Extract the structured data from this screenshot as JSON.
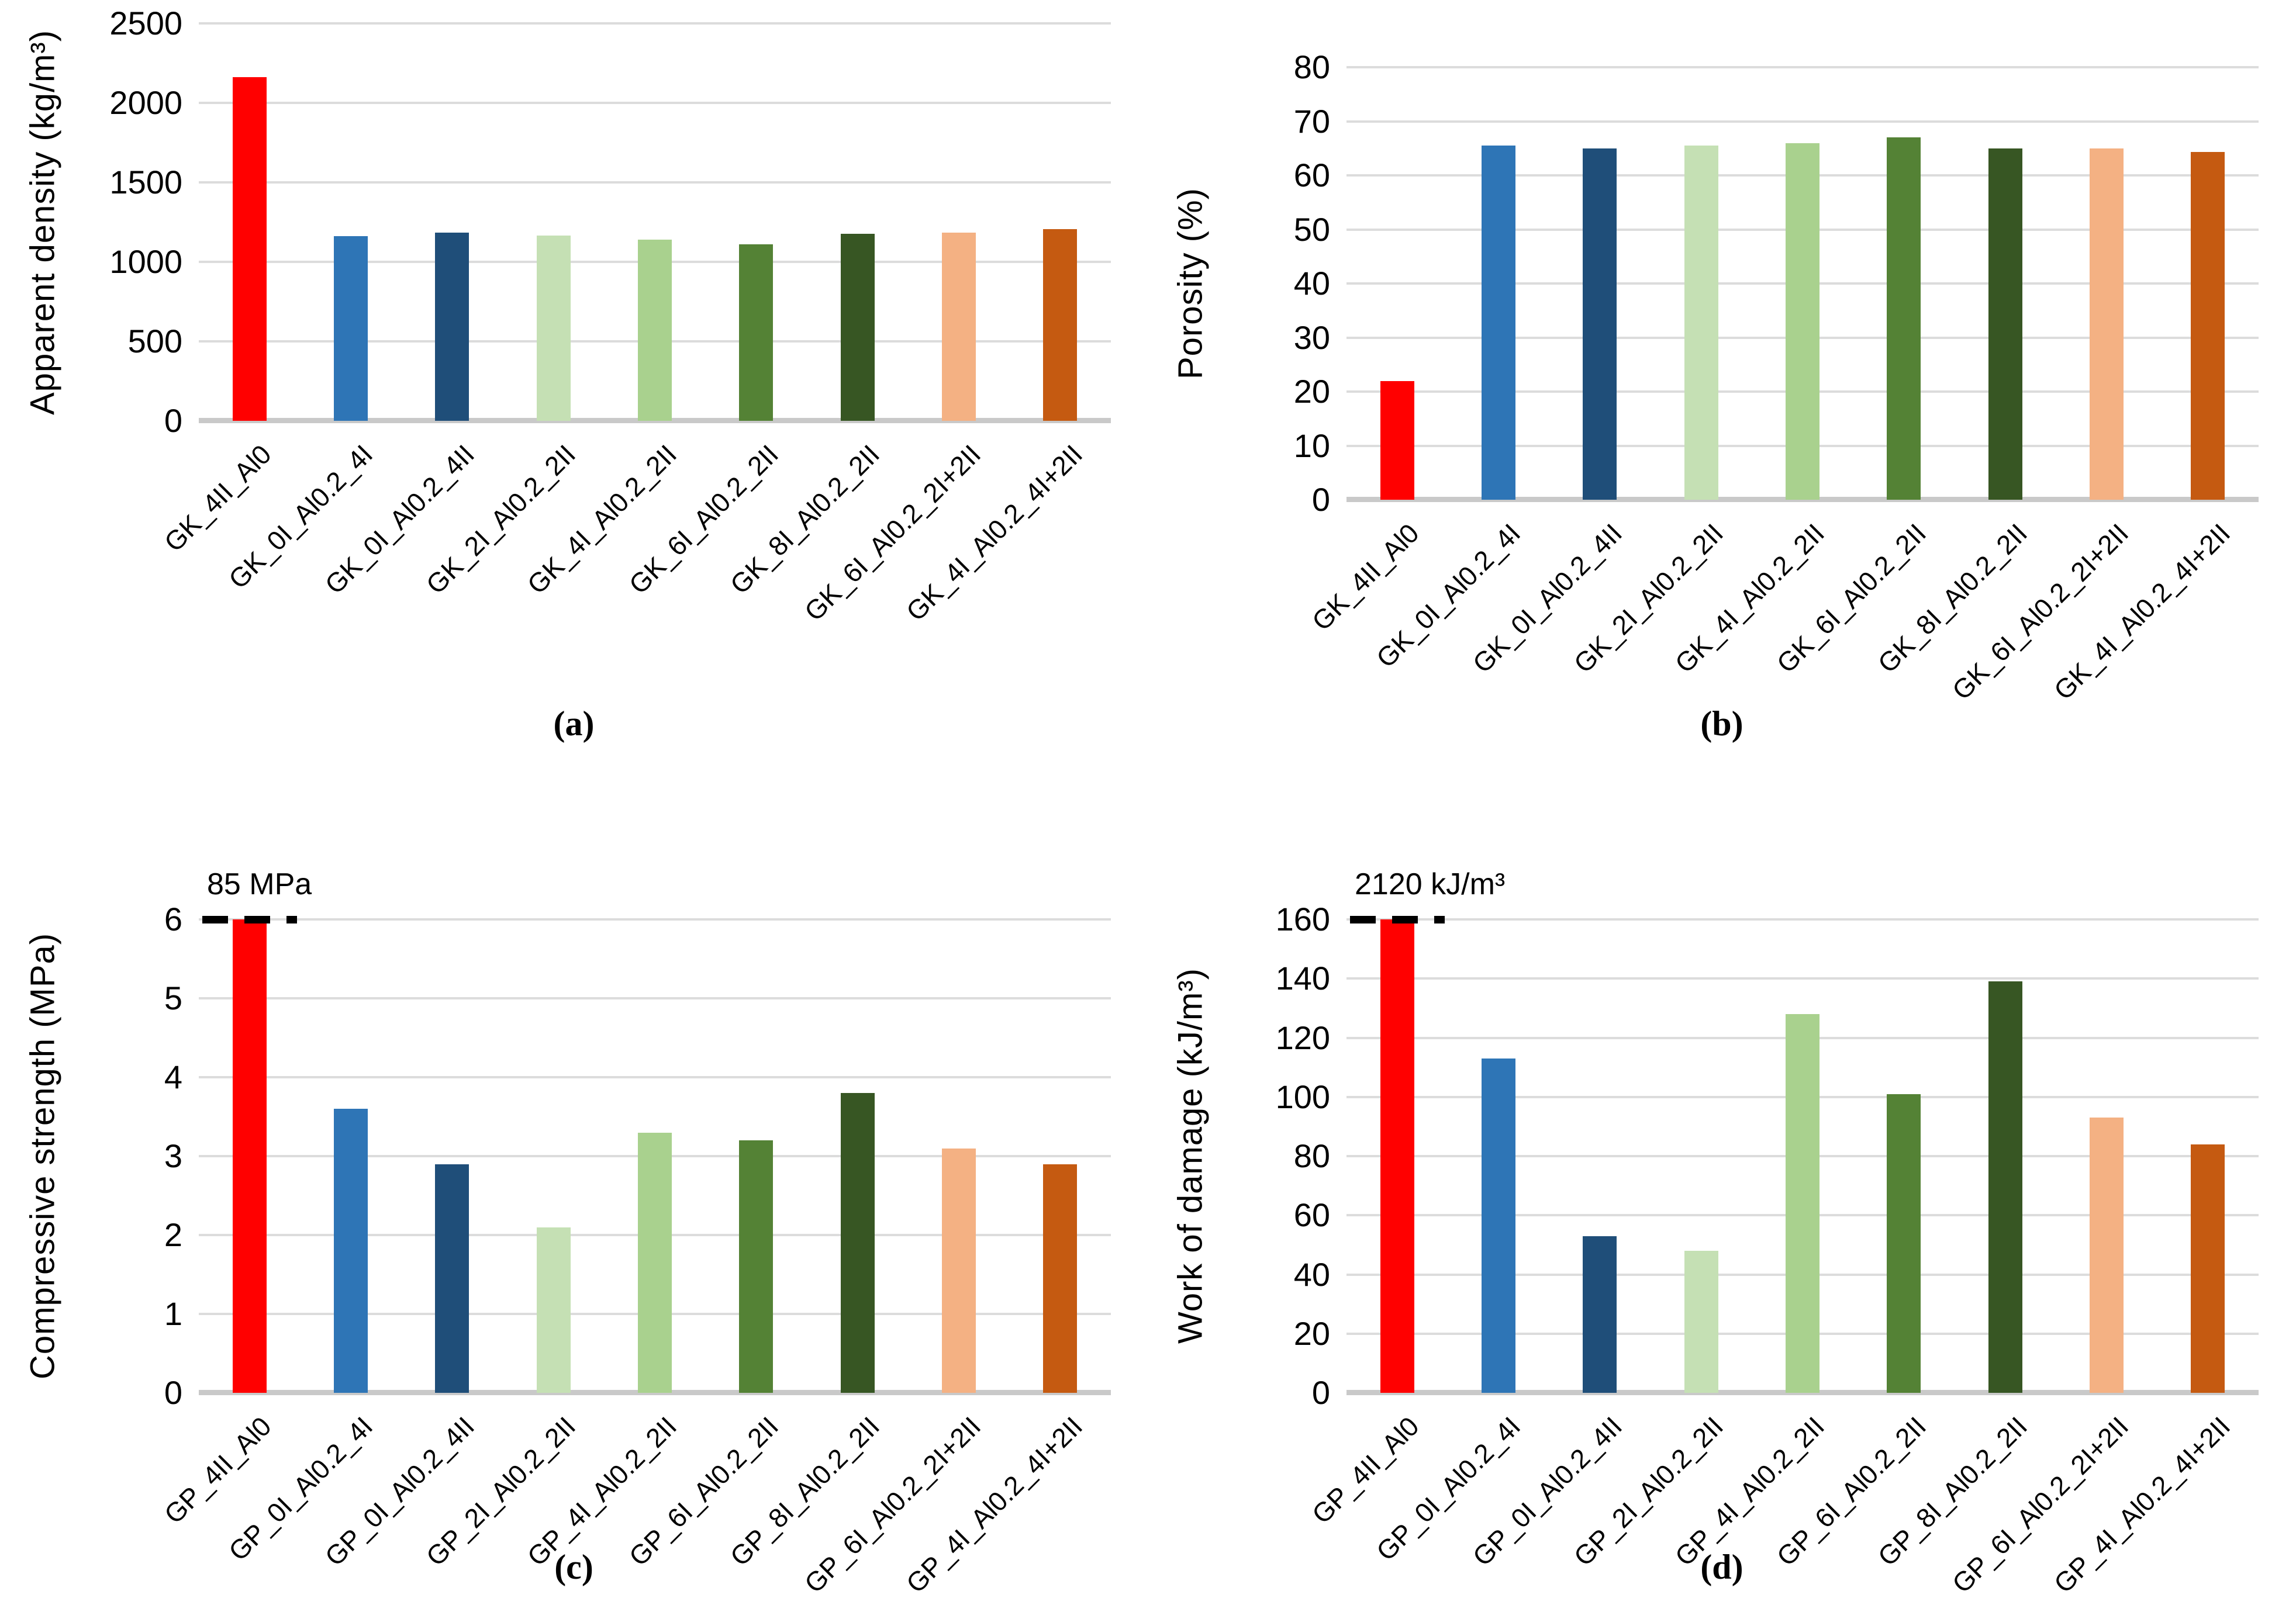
{
  "style": {
    "bar_colors": [
      "#FF0000",
      "#2E75B6",
      "#1F4E79",
      "#C5E0B4",
      "#A9D18E",
      "#548235",
      "#375623",
      "#F4B183",
      "#C55A11"
    ],
    "gridline_color": "#DCDCDC",
    "axis_line_color": "#C9C9C9",
    "annotation_line_color": "#000000",
    "text_color": "#000000",
    "background": "#FFFFFF"
  },
  "chart_data": [
    {
      "type": "bar",
      "panel": "a",
      "letter": "(a)",
      "title": "",
      "xlabel": "",
      "ylabel": "Apparent density (kg/m³)",
      "ylim": [
        0,
        2500
      ],
      "ytick_step": 500,
      "grid": true,
      "legend": false,
      "categories": [
        "GK_4II_Al0",
        "GK_0I_Al0.2_4I",
        "GK_0I_Al0.2_4II",
        "GK_2I_Al0.2_2II",
        "GK_4I_Al0.2_2II",
        "GK_6I_Al0.2_2II",
        "GK_8I_Al0.2_2II",
        "GK_6I_Al0.2_2I+2II",
        "GK_4I_Al0.2_4I+2II"
      ],
      "values": [
        2160,
        1160,
        1185,
        1165,
        1140,
        1110,
        1175,
        1185,
        1205
      ],
      "annotation": null
    },
    {
      "type": "bar",
      "panel": "b",
      "letter": "(b)",
      "title": "",
      "xlabel": "",
      "ylabel": "Porosity (%)",
      "ylim": [
        0,
        80
      ],
      "ytick_step": 10,
      "grid": true,
      "legend": false,
      "categories": [
        "GK_4II_Al0",
        "GK_0I_Al0.2_4I",
        "GK_0I_Al0.2_4II",
        "GK_2I_Al0.2_2II",
        "GK_4I_Al0.2_2II",
        "GK_6I_Al0.2_2II",
        "GK_8I_Al0.2_2II",
        "GK_6I_Al0.2_2I+2II",
        "GK_4I_Al0.2_4I+2II"
      ],
      "values": [
        22,
        65.5,
        65,
        65.5,
        66,
        67,
        65,
        65,
        64.3
      ],
      "annotation": null
    },
    {
      "type": "bar",
      "panel": "c",
      "letter": "(c)",
      "title": "",
      "xlabel": "",
      "ylabel": "Compressive strength (MPa)",
      "ylim": [
        0,
        6
      ],
      "ytick_step": 1,
      "grid": true,
      "legend": false,
      "categories": [
        "GP_4II_Al0",
        "GP_0I_Al0.2_4I",
        "GP_0I_Al0.2_4II",
        "GP_2I_Al0.2_2II",
        "GP_4I_Al0.2_2II",
        "GP_6I_Al0.2_2II",
        "GP_8I_Al0.2_2II",
        "GP_6I_Al0.2_2I+2II",
        "GP_4I_Al0.2_4I+2II"
      ],
      "values": [
        85,
        3.6,
        2.9,
        2.1,
        3.3,
        3.2,
        3.8,
        3.1,
        2.9
      ],
      "annotation": {
        "text": "85 MPa",
        "bar_index": 0,
        "note": "first bar exceeds axis; drawn capped at 6 with dashed cap line"
      }
    },
    {
      "type": "bar",
      "panel": "d",
      "letter": "(d)",
      "title": "",
      "xlabel": "",
      "ylabel": "Work of damage (kJ/m³)",
      "ylim": [
        0,
        160
      ],
      "ytick_step": 20,
      "grid": true,
      "legend": false,
      "categories": [
        "GP_4II_Al0",
        "GP_0I_Al0.2_4I",
        "GP_0I_Al0.2_4II",
        "GP_2I_Al0.2_2II",
        "GP_4I_Al0.2_2II",
        "GP_6I_Al0.2_2II",
        "GP_8I_Al0.2_2II",
        "GP_6I_Al0.2_2I+2II",
        "GP_4I_Al0.2_4I+2II"
      ],
      "values": [
        2120,
        113,
        53,
        48,
        128,
        101,
        139,
        93,
        84
      ],
      "annotation": {
        "text": "2120 kJ/m³",
        "bar_index": 0,
        "note": "first bar exceeds axis; drawn capped at 160 with dashed cap line"
      }
    }
  ]
}
